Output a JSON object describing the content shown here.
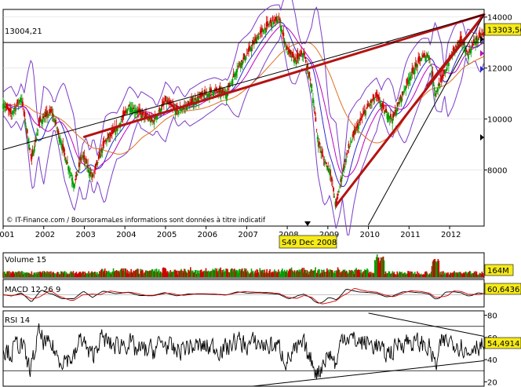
{
  "chart_data": {
    "type": "line",
    "main": {
      "ref_label": "13004,21",
      "last_price_label": "13303,56",
      "y_ticks": [
        "14000",
        "12000",
        "10000",
        "8000"
      ],
      "y_tick_values": [
        14000,
        12000,
        10000,
        8000
      ],
      "ylim": [
        5800,
        14300
      ],
      "x_ticks": [
        "2001",
        "2002",
        "2003",
        "2004",
        "2005",
        "2006",
        "2007",
        "2008",
        "2009",
        "2010",
        "2011",
        "2012"
      ],
      "xlim": [
        2001.0,
        2012.85
      ],
      "watermark": "© IT-Finance.com / BoursoramaLes informations sont données à titre indicatif",
      "cursor_date": "S49 Dec 2008",
      "price_series": [
        {
          "x": 2001.0,
          "y": 10600
        },
        {
          "x": 2001.2,
          "y": 10200
        },
        {
          "x": 2001.45,
          "y": 10850
        },
        {
          "x": 2001.7,
          "y": 8400
        },
        {
          "x": 2001.9,
          "y": 9900
        },
        {
          "x": 2002.2,
          "y": 10300
        },
        {
          "x": 2002.5,
          "y": 8700
        },
        {
          "x": 2002.75,
          "y": 7400
        },
        {
          "x": 2002.95,
          "y": 8600
        },
        {
          "x": 2003.2,
          "y": 7700
        },
        {
          "x": 2003.5,
          "y": 9100
        },
        {
          "x": 2003.8,
          "y": 9600
        },
        {
          "x": 2004.1,
          "y": 10500
        },
        {
          "x": 2004.4,
          "y": 10200
        },
        {
          "x": 2004.7,
          "y": 9900
        },
        {
          "x": 2005.0,
          "y": 10700
        },
        {
          "x": 2005.3,
          "y": 10300
        },
        {
          "x": 2005.6,
          "y": 10600
        },
        {
          "x": 2005.9,
          "y": 10900
        },
        {
          "x": 2006.2,
          "y": 11100
        },
        {
          "x": 2006.5,
          "y": 11000
        },
        {
          "x": 2006.8,
          "y": 12100
        },
        {
          "x": 2007.0,
          "y": 12500
        },
        {
          "x": 2007.3,
          "y": 13300
        },
        {
          "x": 2007.6,
          "y": 13800
        },
        {
          "x": 2007.8,
          "y": 13900
        },
        {
          "x": 2008.0,
          "y": 12700
        },
        {
          "x": 2008.2,
          "y": 12300
        },
        {
          "x": 2008.4,
          "y": 12600
        },
        {
          "x": 2008.6,
          "y": 11300
        },
        {
          "x": 2008.75,
          "y": 9200
        },
        {
          "x": 2008.9,
          "y": 8400
        },
        {
          "x": 2009.05,
          "y": 8000
        },
        {
          "x": 2009.2,
          "y": 6600
        },
        {
          "x": 2009.35,
          "y": 7800
        },
        {
          "x": 2009.5,
          "y": 8800
        },
        {
          "x": 2009.7,
          "y": 9600
        },
        {
          "x": 2009.95,
          "y": 10400
        },
        {
          "x": 2010.2,
          "y": 10900
        },
        {
          "x": 2010.4,
          "y": 10300
        },
        {
          "x": 2010.6,
          "y": 10000
        },
        {
          "x": 2010.8,
          "y": 10800
        },
        {
          "x": 2011.0,
          "y": 11600
        },
        {
          "x": 2011.3,
          "y": 12400
        },
        {
          "x": 2011.5,
          "y": 12500
        },
        {
          "x": 2011.65,
          "y": 11000
        },
        {
          "x": 2011.85,
          "y": 11700
        },
        {
          "x": 2012.1,
          "y": 12700
        },
        {
          "x": 2012.3,
          "y": 13100
        },
        {
          "x": 2012.45,
          "y": 12500
        },
        {
          "x": 2012.6,
          "y": 13000
        },
        {
          "x": 2012.8,
          "y": 13300
        }
      ],
      "trendlines": [
        {
          "color": "#b51212",
          "from": {
            "x": 2003.0,
            "y": 9300
          },
          "to": {
            "x": 2012.85,
            "y": 14100
          }
        },
        {
          "color": "#b51212",
          "from": {
            "x": 2009.2,
            "y": 6600
          },
          "to": {
            "x": 2012.85,
            "y": 14100
          }
        },
        {
          "color": "#b51212",
          "from": {
            "x": 2011.45,
            "y": 11300
          },
          "to": {
            "x": 2012.85,
            "y": 14100
          }
        },
        {
          "color": "#000000",
          "from": {
            "x": 2001.0,
            "y": 8800
          },
          "to": {
            "x": 2012.85,
            "y": 14100
          }
        },
        {
          "color": "#000000",
          "from": {
            "x": 2010.0,
            "y": 5850
          },
          "to": {
            "x": 2012.85,
            "y": 14100
          }
        }
      ]
    },
    "volume": {
      "label": "Volume 15",
      "last_label": "164M"
    },
    "macd": {
      "label": "MACD 12 26 9",
      "last_label": "60,6436"
    },
    "rsi": {
      "label": "RSI 14",
      "last_label": "54,4914",
      "y_ticks": [
        "80",
        "60",
        "40",
        "20"
      ],
      "y_tick_values": [
        80,
        60,
        40,
        20
      ],
      "ylim": [
        16,
        84
      ],
      "levels": [
        70,
        30
      ],
      "trendlines": [
        {
          "from": {
            "x": 2010.0,
            "y": 82
          },
          "to": {
            "x": 2012.85,
            "y": 61
          }
        },
        {
          "from": {
            "x": 2007.15,
            "y": 16
          },
          "to": {
            "x": 2012.85,
            "y": 39
          }
        }
      ]
    }
  }
}
